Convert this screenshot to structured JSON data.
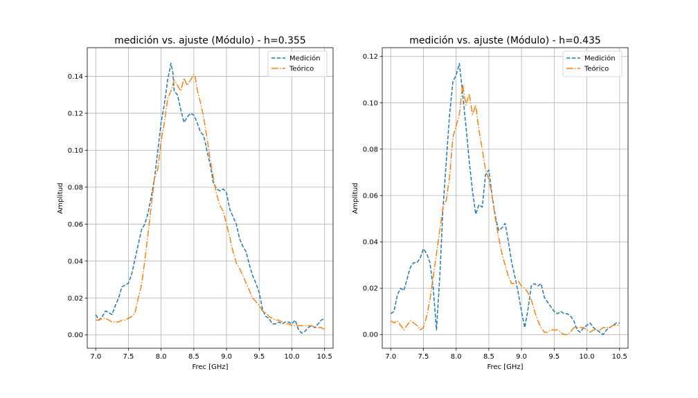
{
  "chart_data": [
    {
      "type": "line",
      "title": "medición vs. ajuste (Módulo) - h=0.355",
      "xlabel": "Frec [GHz]",
      "ylabel": "Amplitud",
      "xlim": [
        6.87,
        10.63
      ],
      "ylim": [
        -0.0072,
        0.1555
      ],
      "xticks": [
        7.0,
        7.5,
        8.0,
        8.5,
        9.0,
        9.5,
        10.0,
        10.5
      ],
      "xtick_labels": [
        "7.0",
        "7.5",
        "8.0",
        "8.5",
        "9.0",
        "9.5",
        "10.0",
        "10.5"
      ],
      "yticks": [
        0.0,
        0.02,
        0.04,
        0.06,
        0.08,
        0.1,
        0.12,
        0.14
      ],
      "ytick_labels": [
        "0.00",
        "0.02",
        "0.04",
        "0.06",
        "0.08",
        "0.10",
        "0.12",
        "0.14"
      ],
      "grid": true,
      "legend_position": "top-right",
      "series": [
        {
          "name": "Medición",
          "color": "#1f77b4",
          "style": "dashed",
          "x": [
            7.0,
            7.05,
            7.1,
            7.15,
            7.2,
            7.25,
            7.3,
            7.35,
            7.4,
            7.45,
            7.5,
            7.55,
            7.6,
            7.65,
            7.7,
            7.75,
            7.8,
            7.85,
            7.9,
            7.95,
            8.0,
            8.05,
            8.1,
            8.15,
            8.18,
            8.2,
            8.25,
            8.3,
            8.35,
            8.4,
            8.45,
            8.5,
            8.55,
            8.6,
            8.65,
            8.7,
            8.75,
            8.8,
            8.85,
            8.9,
            8.95,
            9.0,
            9.05,
            9.1,
            9.15,
            9.2,
            9.25,
            9.3,
            9.35,
            9.4,
            9.45,
            9.5,
            9.55,
            9.6,
            9.65,
            9.7,
            9.75,
            9.8,
            9.85,
            9.9,
            9.95,
            10.0,
            10.05,
            10.1,
            10.15,
            10.2,
            10.25,
            10.3,
            10.35,
            10.4,
            10.45,
            10.5
          ],
          "y": [
            0.011,
            0.008,
            0.01,
            0.013,
            0.012,
            0.011,
            0.016,
            0.02,
            0.026,
            0.027,
            0.028,
            0.033,
            0.041,
            0.049,
            0.057,
            0.06,
            0.066,
            0.075,
            0.085,
            0.1,
            0.115,
            0.125,
            0.138,
            0.147,
            0.142,
            0.132,
            0.13,
            0.122,
            0.115,
            0.118,
            0.12,
            0.119,
            0.115,
            0.11,
            0.108,
            0.1,
            0.092,
            0.082,
            0.079,
            0.078,
            0.079,
            0.077,
            0.068,
            0.064,
            0.06,
            0.052,
            0.048,
            0.045,
            0.038,
            0.032,
            0.028,
            0.023,
            0.014,
            0.01,
            0.009,
            0.006,
            0.006,
            0.007,
            0.006,
            0.007,
            0.007,
            0.006,
            0.008,
            0.003,
            0.001,
            0.002,
            0.004,
            0.005,
            0.004,
            0.006,
            0.008,
            0.009
          ]
        },
        {
          "name": "Teórico",
          "color": "#ff7f0e",
          "style": "dashdot",
          "x": [
            7.0,
            7.05,
            7.1,
            7.15,
            7.2,
            7.25,
            7.3,
            7.35,
            7.4,
            7.45,
            7.5,
            7.55,
            7.6,
            7.65,
            7.7,
            7.75,
            7.8,
            7.85,
            7.9,
            7.95,
            8.0,
            8.05,
            8.1,
            8.15,
            8.2,
            8.25,
            8.3,
            8.35,
            8.4,
            8.45,
            8.5,
            8.52,
            8.55,
            8.6,
            8.65,
            8.7,
            8.75,
            8.8,
            8.85,
            8.9,
            8.95,
            9.0,
            9.05,
            9.1,
            9.15,
            9.2,
            9.25,
            9.3,
            9.35,
            9.4,
            9.45,
            9.5,
            9.55,
            9.6,
            9.65,
            9.7,
            9.75,
            9.8,
            9.85,
            9.9,
            9.95,
            10.0,
            10.05,
            10.1,
            10.15,
            10.2,
            10.25,
            10.3,
            10.35,
            10.4,
            10.45,
            10.5
          ],
          "y": [
            0.008,
            0.008,
            0.009,
            0.009,
            0.008,
            0.007,
            0.007,
            0.007,
            0.008,
            0.008,
            0.009,
            0.01,
            0.012,
            0.02,
            0.027,
            0.04,
            0.055,
            0.07,
            0.085,
            0.09,
            0.105,
            0.115,
            0.128,
            0.132,
            0.138,
            0.135,
            0.132,
            0.139,
            0.135,
            0.138,
            0.141,
            0.14,
            0.133,
            0.126,
            0.118,
            0.107,
            0.095,
            0.085,
            0.076,
            0.07,
            0.067,
            0.06,
            0.053,
            0.045,
            0.039,
            0.036,
            0.032,
            0.028,
            0.024,
            0.02,
            0.018,
            0.016,
            0.013,
            0.012,
            0.01,
            0.009,
            0.008,
            0.008,
            0.007,
            0.006,
            0.006,
            0.005,
            0.005,
            0.005,
            0.005,
            0.005,
            0.005,
            0.005,
            0.004,
            0.004,
            0.004,
            0.003
          ]
        }
      ]
    },
    {
      "type": "line",
      "title": "medición vs. ajuste (Módulo) - h=0.435",
      "xlabel": "Frec [GHz]",
      "ylabel": "Amplitud",
      "xlim": [
        6.87,
        10.63
      ],
      "ylim": [
        -0.0059,
        0.1238
      ],
      "xticks": [
        7.0,
        7.5,
        8.0,
        8.5,
        9.0,
        9.5,
        10.0,
        10.5
      ],
      "xtick_labels": [
        "7.0",
        "7.5",
        "8.0",
        "8.5",
        "9.0",
        "9.5",
        "10.0",
        "10.5"
      ],
      "yticks": [
        0.0,
        0.02,
        0.04,
        0.06,
        0.08,
        0.1,
        0.12
      ],
      "ytick_labels": [
        "0.00",
        "0.02",
        "0.04",
        "0.06",
        "0.08",
        "0.10",
        "0.12"
      ],
      "grid": true,
      "legend_position": "top-right",
      "series": [
        {
          "name": "Medición",
          "color": "#1f77b4",
          "style": "dashed",
          "x": [
            7.0,
            7.05,
            7.1,
            7.15,
            7.2,
            7.25,
            7.3,
            7.35,
            7.4,
            7.45,
            7.5,
            7.55,
            7.6,
            7.65,
            7.7,
            7.75,
            7.8,
            7.85,
            7.9,
            7.95,
            8.0,
            8.05,
            8.1,
            8.15,
            8.2,
            8.25,
            8.3,
            8.35,
            8.4,
            8.45,
            8.5,
            8.55,
            8.6,
            8.65,
            8.7,
            8.75,
            8.8,
            8.85,
            8.9,
            8.95,
            9.0,
            9.05,
            9.1,
            9.15,
            9.2,
            9.25,
            9.3,
            9.35,
            9.4,
            9.45,
            9.5,
            9.55,
            9.6,
            9.65,
            9.7,
            9.75,
            9.8,
            9.85,
            9.9,
            9.95,
            10.0,
            10.05,
            10.1,
            10.15,
            10.2,
            10.25,
            10.3,
            10.35,
            10.4,
            10.45,
            10.5
          ],
          "y": [
            0.009,
            0.01,
            0.017,
            0.02,
            0.019,
            0.024,
            0.029,
            0.031,
            0.031,
            0.033,
            0.037,
            0.035,
            0.031,
            0.02,
            0.002,
            0.025,
            0.055,
            0.075,
            0.095,
            0.109,
            0.112,
            0.117,
            0.104,
            0.09,
            0.075,
            0.062,
            0.052,
            0.056,
            0.055,
            0.069,
            0.071,
            0.06,
            0.051,
            0.045,
            0.046,
            0.048,
            0.04,
            0.031,
            0.025,
            0.018,
            0.01,
            0.003,
            0.011,
            0.021,
            0.022,
            0.021,
            0.022,
            0.016,
            0.014,
            0.012,
            0.01,
            0.009,
            0.01,
            0.009,
            0.009,
            0.008,
            0.006,
            0.002,
            0.001,
            0.003,
            0.004,
            0.005,
            0.003,
            0.002,
            0.001,
            0.0,
            0.002,
            0.003,
            0.004,
            0.005,
            0.005
          ]
        },
        {
          "name": "Teórico",
          "color": "#ff7f0e",
          "style": "dashdot",
          "x": [
            7.0,
            7.05,
            7.1,
            7.15,
            7.2,
            7.25,
            7.3,
            7.35,
            7.4,
            7.45,
            7.5,
            7.55,
            7.6,
            7.65,
            7.7,
            7.75,
            7.8,
            7.85,
            7.9,
            7.95,
            8.0,
            8.05,
            8.1,
            8.15,
            8.2,
            8.25,
            8.3,
            8.35,
            8.4,
            8.45,
            8.5,
            8.55,
            8.6,
            8.65,
            8.7,
            8.75,
            8.8,
            8.85,
            8.9,
            8.95,
            9.0,
            9.05,
            9.1,
            9.15,
            9.2,
            9.25,
            9.3,
            9.35,
            9.4,
            9.45,
            9.5,
            9.55,
            9.6,
            9.65,
            9.7,
            9.75,
            9.8,
            9.85,
            9.9,
            9.95,
            10.0,
            10.05,
            10.1,
            10.15,
            10.2,
            10.25,
            10.3,
            10.35,
            10.4,
            10.45,
            10.5
          ],
          "y": [
            0.006,
            0.005,
            0.006,
            0.004,
            0.002,
            0.004,
            0.006,
            0.005,
            0.004,
            0.002,
            0.003,
            0.008,
            0.015,
            0.025,
            0.035,
            0.045,
            0.055,
            0.058,
            0.068,
            0.085,
            0.09,
            0.095,
            0.108,
            0.099,
            0.104,
            0.095,
            0.099,
            0.088,
            0.08,
            0.071,
            0.067,
            0.06,
            0.05,
            0.042,
            0.035,
            0.03,
            0.025,
            0.022,
            0.022,
            0.023,
            0.021,
            0.02,
            0.018,
            0.015,
            0.01,
            0.006,
            0.003,
            0.001,
            0.001,
            0.002,
            0.002,
            0.002,
            0.001,
            0.0,
            0.0,
            0.001,
            0.003,
            0.003,
            0.003,
            0.003,
            0.002,
            0.001,
            0.002,
            0.002,
            0.002,
            0.003,
            0.003,
            0.003,
            0.004,
            0.004,
            0.004
          ]
        }
      ]
    }
  ]
}
